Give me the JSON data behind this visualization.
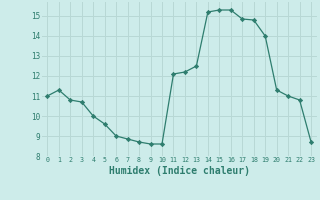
{
  "x": [
    0,
    1,
    2,
    3,
    4,
    5,
    6,
    7,
    8,
    9,
    10,
    11,
    12,
    13,
    14,
    15,
    16,
    17,
    18,
    19,
    20,
    21,
    22,
    23
  ],
  "y": [
    11.0,
    11.3,
    10.8,
    10.7,
    10.0,
    9.6,
    9.0,
    8.85,
    8.7,
    8.6,
    8.6,
    12.1,
    12.2,
    12.5,
    15.2,
    15.3,
    15.3,
    14.85,
    14.8,
    14.0,
    11.3,
    11.0,
    10.8,
    8.7
  ],
  "line_color": "#2e7d6e",
  "marker": "D",
  "marker_size": 2.2,
  "bg_color": "#cdecea",
  "grid_color": "#b8d8d5",
  "tick_color": "#2e7d6e",
  "xlabel": "Humidex (Indice chaleur)",
  "xlabel_fontsize": 7,
  "title": "",
  "xlim": [
    -0.5,
    23.5
  ],
  "ylim": [
    8,
    15.7
  ],
  "yticks": [
    8,
    9,
    10,
    11,
    12,
    13,
    14,
    15
  ],
  "xticks": [
    0,
    1,
    2,
    3,
    4,
    5,
    6,
    7,
    8,
    9,
    10,
    11,
    12,
    13,
    14,
    15,
    16,
    17,
    18,
    19,
    20,
    21,
    22,
    23
  ]
}
